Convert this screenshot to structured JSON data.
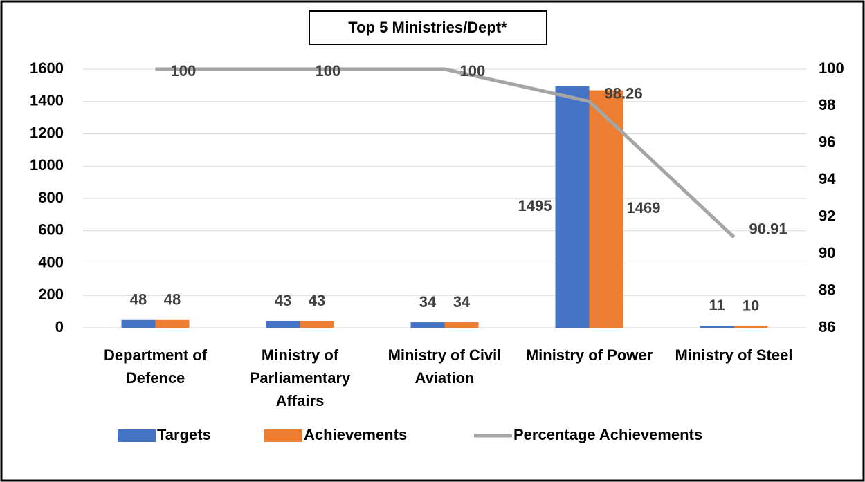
{
  "chart_data": {
    "type": "bar",
    "title": "Top 5 Ministries/Dept*",
    "categories": [
      "Department of Defence",
      "Ministry of Parliamentary Affairs",
      "Ministry of Civil Aviation",
      "Ministry of Power",
      "Ministry of Steel"
    ],
    "series": [
      {
        "name": "Targets",
        "color": "#4472c4",
        "type": "bar",
        "values": [
          48,
          43,
          34,
          1495,
          11
        ]
      },
      {
        "name": "Achievements",
        "color": "#ed7d31",
        "type": "bar",
        "values": [
          48,
          43,
          34,
          1469,
          10
        ]
      },
      {
        "name": "Percentage Achievements",
        "color": "#a5a5a5",
        "type": "line",
        "axis": "y2",
        "values": [
          100,
          100,
          100,
          98.26,
          90.91
        ]
      }
    ],
    "ylim": [
      0,
      1600
    ],
    "yticks": [
      0,
      200,
      400,
      600,
      800,
      1000,
      1200,
      1400,
      1600
    ],
    "y2lim": [
      86,
      100
    ],
    "y2ticks": [
      86,
      88,
      90,
      92,
      94,
      96,
      98,
      100
    ],
    "grid": true,
    "legend": "bottom"
  }
}
